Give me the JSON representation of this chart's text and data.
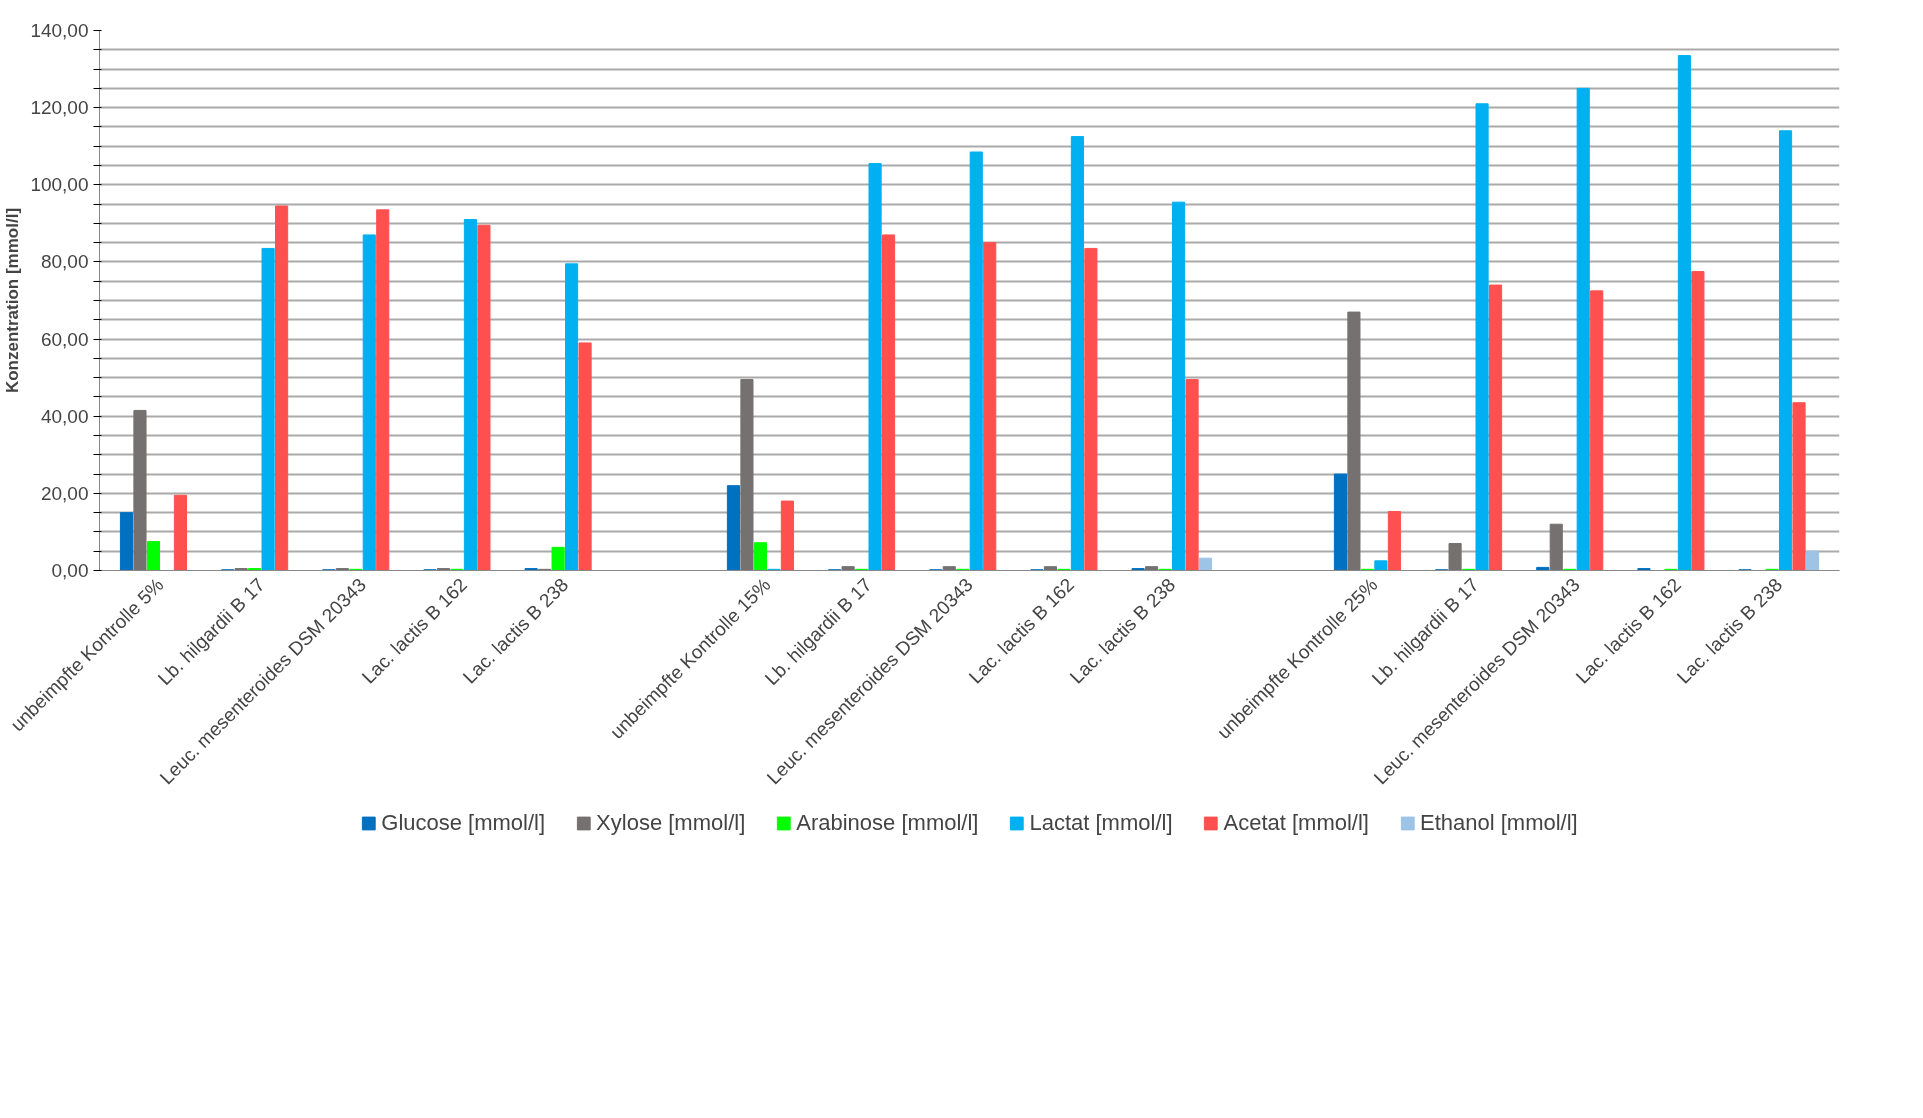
{
  "chart_data": {
    "type": "bar",
    "ylabel": "Konzentration [mmol/l]",
    "categories": [
      "unbeimpfte Kontrolle 5%",
      "Lb. hilgardii B 17",
      "Leuc. mesenteroides DSM 20343",
      "Lac. lactis B 162",
      "Lac. lactis B 238",
      null,
      "unbeimpfte Kontrolle 15%",
      "Lb. hilgardii B 17",
      "Leuc. mesenteroides DSM 20343",
      "Lac. lactis B 162",
      "Lac. lactis B 238",
      null,
      "unbeimpfte Kontrolle 25%",
      "Lb. hilgardii B 17",
      "Leuc. mesenteroides DSM 20343",
      "Lac. lactis B 162",
      "Lac. lactis B 238"
    ],
    "series": [
      {
        "name": "Glucose [mmol/l]",
        "color": "#0070c0",
        "values": [
          15,
          0.2,
          0.2,
          0.2,
          0.5,
          null,
          22,
          0.2,
          0.2,
          0.2,
          0.5,
          null,
          25,
          0.2,
          0.8,
          0.5,
          0.2
        ]
      },
      {
        "name": "Xylose [mmol/l]",
        "color": "#767171",
        "values": [
          41.5,
          0.5,
          0.5,
          0.5,
          0.3,
          null,
          49.5,
          1,
          1,
          1,
          1,
          null,
          67,
          7,
          12,
          0,
          0
        ]
      },
      {
        "name": "Arabinose [mmol/l]",
        "color": "#00ff00",
        "values": [
          7.5,
          0.5,
          0.3,
          0.3,
          6,
          null,
          7.2,
          0.3,
          0.3,
          0.3,
          0.3,
          null,
          0.3,
          0.3,
          0.3,
          0.3,
          0.3
        ]
      },
      {
        "name": "Lactat [mmol/l]",
        "color": "#00b0f0",
        "values": [
          0,
          83.5,
          87,
          91,
          79.5,
          null,
          0.3,
          105.5,
          108.5,
          112.5,
          95.5,
          null,
          2.5,
          121,
          125,
          133.5,
          114
        ]
      },
      {
        "name": "Acetat [mmol/l]",
        "color": "#ff5050",
        "values": [
          19.5,
          94.5,
          93.5,
          89.5,
          59,
          null,
          18,
          87,
          85,
          83.5,
          49.5,
          null,
          15.3,
          74,
          72.5,
          77.5,
          43.5
        ]
      },
      {
        "name": "Ethanol [mmol/l]",
        "color": "#9dc3e6",
        "values": [
          0,
          0,
          0,
          0,
          0,
          null,
          0,
          0,
          0,
          0,
          3.2,
          null,
          0,
          0,
          0,
          0,
          5
        ]
      }
    ],
    "ylim": [
      0,
      140
    ],
    "yticks": [
      {
        "value": 0,
        "label": "0,00"
      },
      {
        "value": 5,
        "label": null
      },
      {
        "value": 10,
        "label": null
      },
      {
        "value": 15,
        "label": null
      },
      {
        "value": 20,
        "label": "20,00"
      },
      {
        "value": 25,
        "label": null
      },
      {
        "value": 30,
        "label": null
      },
      {
        "value": 35,
        "label": null
      },
      {
        "value": 40,
        "label": "40,00"
      },
      {
        "value": 45,
        "label": null
      },
      {
        "value": 50,
        "label": null
      },
      {
        "value": 55,
        "label": null
      },
      {
        "value": 60,
        "label": "60,00"
      },
      {
        "value": 65,
        "label": null
      },
      {
        "value": 70,
        "label": null
      },
      {
        "value": 75,
        "label": null
      },
      {
        "value": 80,
        "label": "80,00"
      },
      {
        "value": 85,
        "label": null
      },
      {
        "value": 90,
        "label": null
      },
      {
        "value": 95,
        "label": null
      },
      {
        "value": 100,
        "label": "100,00"
      },
      {
        "value": 105,
        "label": null
      },
      {
        "value": 110,
        "label": null
      },
      {
        "value": 115,
        "label": null
      },
      {
        "value": 120,
        "label": "120,00"
      },
      {
        "value": 125,
        "label": null
      },
      {
        "value": 130,
        "label": null
      },
      {
        "value": 135,
        "label": null
      },
      {
        "value": 140,
        "label": "140,00"
      }
    ],
    "grid": "y",
    "legend": "bottom"
  }
}
